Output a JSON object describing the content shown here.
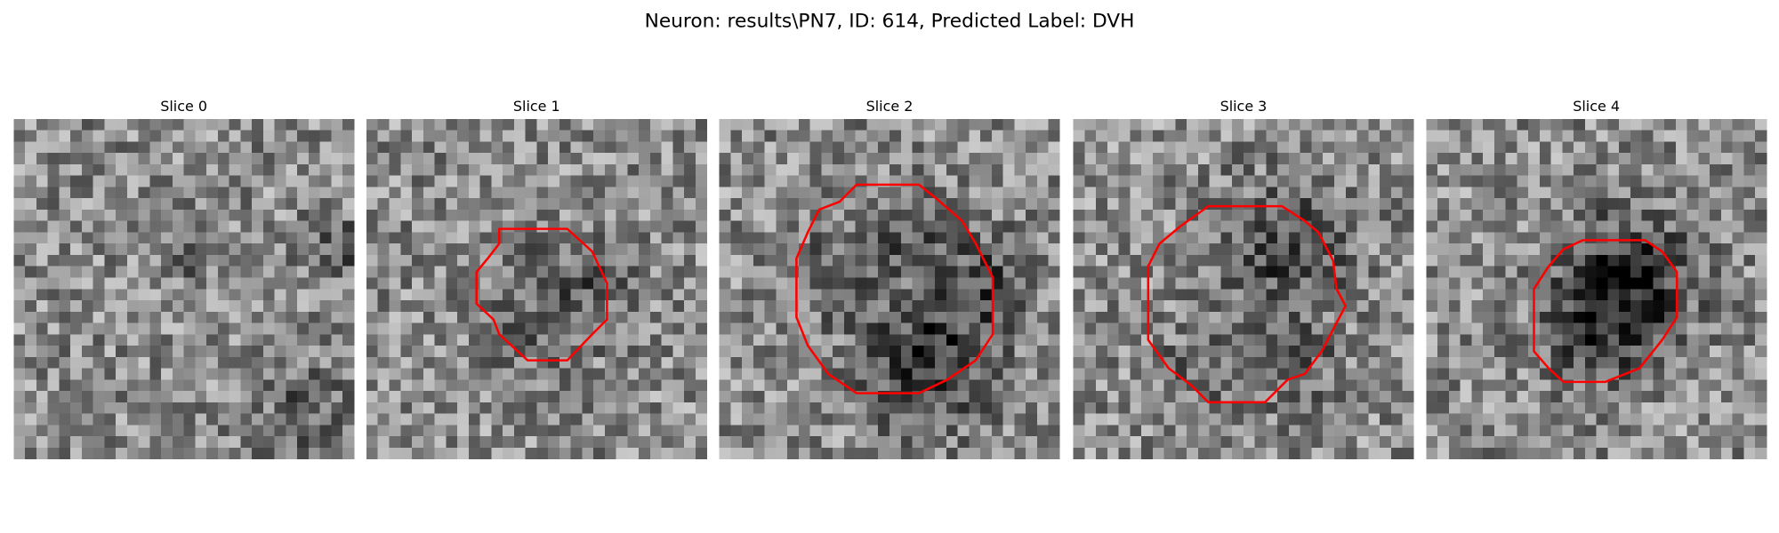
{
  "title": "Neuron: results\\PN7, ID: 614, Predicted Label: DVH",
  "panels": [
    {
      "title": "Slice 0"
    },
    {
      "title": "Slice 1"
    },
    {
      "title": "Slice 2"
    },
    {
      "title": "Slice 3"
    },
    {
      "title": "Slice 4"
    }
  ]
}
